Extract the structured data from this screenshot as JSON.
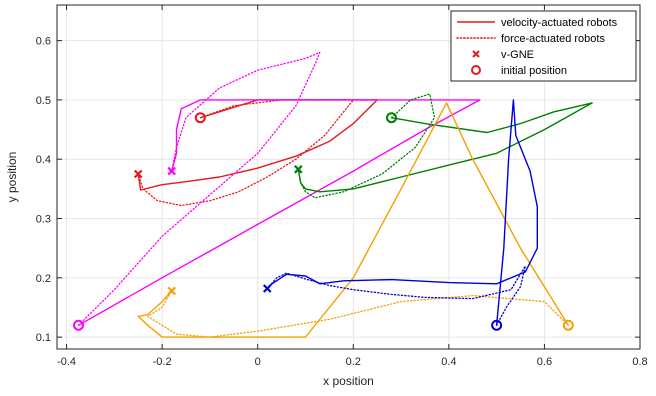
{
  "chart_data": {
    "type": "line",
    "xlabel": "x position",
    "ylabel": "y position",
    "xlim": [
      -0.42,
      0.8
    ],
    "ylim": [
      0.08,
      0.66
    ],
    "x_ticks": [
      -0.4,
      -0.2,
      0,
      0.2,
      0.4,
      0.6,
      0.8
    ],
    "y_ticks": [
      0.1,
      0.2,
      0.3,
      0.4,
      0.5,
      0.6
    ],
    "x_tick_labels": [
      "-0.4",
      "-0.2",
      "0",
      "0.2",
      "0.4",
      "0.6",
      "0.8"
    ],
    "y_tick_labels": [
      "0.1",
      "0.2",
      "0.3",
      "0.4",
      "0.5",
      "0.6"
    ],
    "grid": true,
    "legend_placement": "top-right",
    "legend": [
      {
        "label": "velocity-actuated robots",
        "style": "solid-line",
        "color": "#e41a1c"
      },
      {
        "label": "force-actuated robots",
        "style": "dotted-line",
        "color": "#e41a1c"
      },
      {
        "label": "v-GNE",
        "style": "x-marker",
        "color": "#e41a1c"
      },
      {
        "label": "initial position",
        "style": "circle-marker",
        "color": "#e41a1c"
      }
    ],
    "series": [
      {
        "color": "#e41a1c",
        "initial": [
          -0.12,
          0.47
        ],
        "gne": [
          -0.25,
          0.375
        ],
        "velocity": [
          [
            -0.12,
            0.47
          ],
          [
            0.0,
            0.5
          ],
          [
            0.25,
            0.5
          ],
          [
            0.2,
            0.46
          ],
          [
            0.15,
            0.43
          ],
          [
            0.08,
            0.405
          ],
          [
            0.0,
            0.385
          ],
          [
            -0.08,
            0.37
          ],
          [
            -0.15,
            0.362
          ],
          [
            -0.2,
            0.357
          ],
          [
            -0.245,
            0.348
          ],
          [
            -0.25,
            0.375
          ]
        ],
        "force": [
          [
            -0.12,
            0.47
          ],
          [
            -0.05,
            0.49
          ],
          [
            0.05,
            0.5
          ],
          [
            0.2,
            0.5
          ],
          [
            0.14,
            0.44
          ],
          [
            0.08,
            0.4
          ],
          [
            0.02,
            0.37
          ],
          [
            -0.04,
            0.345
          ],
          [
            -0.1,
            0.33
          ],
          [
            -0.16,
            0.322
          ],
          [
            -0.21,
            0.33
          ],
          [
            -0.24,
            0.35
          ],
          [
            -0.25,
            0.375
          ]
        ]
      },
      {
        "color": "#ff00ff",
        "initial": [
          -0.375,
          0.12
        ],
        "gne": [
          -0.18,
          0.38
        ],
        "velocity": [
          [
            -0.375,
            0.12
          ],
          [
            -0.2,
            0.2
          ],
          [
            0.0,
            0.29
          ],
          [
            0.2,
            0.38
          ],
          [
            0.35,
            0.45
          ],
          [
            0.465,
            0.5
          ],
          [
            0.3,
            0.5
          ],
          [
            0.1,
            0.5
          ],
          [
            -0.12,
            0.5
          ],
          [
            -0.16,
            0.485
          ],
          [
            -0.17,
            0.45
          ],
          [
            -0.17,
            0.41
          ],
          [
            -0.18,
            0.38
          ]
        ],
        "force": [
          [
            -0.375,
            0.12
          ],
          [
            -0.3,
            0.18
          ],
          [
            -0.2,
            0.27
          ],
          [
            -0.1,
            0.34
          ],
          [
            0.0,
            0.41
          ],
          [
            0.08,
            0.49
          ],
          [
            0.12,
            0.56
          ],
          [
            0.13,
            0.58
          ],
          [
            0.1,
            0.57
          ],
          [
            0.0,
            0.55
          ],
          [
            -0.08,
            0.52
          ],
          [
            -0.15,
            0.47
          ],
          [
            -0.17,
            0.42
          ],
          [
            -0.18,
            0.38
          ]
        ]
      },
      {
        "color": "#008000",
        "initial": [
          0.28,
          0.47
        ],
        "gne": [
          0.085,
          0.383
        ],
        "velocity": [
          [
            0.28,
            0.47
          ],
          [
            0.35,
            0.46
          ],
          [
            0.48,
            0.445
          ],
          [
            0.55,
            0.46
          ],
          [
            0.62,
            0.48
          ],
          [
            0.7,
            0.495
          ],
          [
            0.6,
            0.45
          ],
          [
            0.5,
            0.41
          ],
          [
            0.4,
            0.39
          ],
          [
            0.3,
            0.37
          ],
          [
            0.2,
            0.35
          ],
          [
            0.13,
            0.345
          ],
          [
            0.1,
            0.35
          ],
          [
            0.09,
            0.36
          ],
          [
            0.085,
            0.383
          ]
        ],
        "force": [
          [
            0.28,
            0.47
          ],
          [
            0.32,
            0.5
          ],
          [
            0.36,
            0.51
          ],
          [
            0.37,
            0.47
          ],
          [
            0.33,
            0.42
          ],
          [
            0.26,
            0.375
          ],
          [
            0.18,
            0.345
          ],
          [
            0.12,
            0.335
          ],
          [
            0.1,
            0.345
          ],
          [
            0.09,
            0.36
          ],
          [
            0.085,
            0.383
          ]
        ]
      },
      {
        "color": "#f5a000",
        "initial": [
          0.65,
          0.12
        ],
        "gne": [
          -0.18,
          0.178
        ],
        "velocity": [
          [
            0.65,
            0.12
          ],
          [
            0.55,
            0.25
          ],
          [
            0.45,
            0.4
          ],
          [
            0.395,
            0.495
          ],
          [
            0.3,
            0.35
          ],
          [
            0.2,
            0.2
          ],
          [
            0.1,
            0.1
          ],
          [
            0.0,
            0.1
          ],
          [
            -0.12,
            0.1
          ],
          [
            -0.2,
            0.1
          ],
          [
            -0.23,
            0.12
          ],
          [
            -0.25,
            0.135
          ],
          [
            -0.23,
            0.138
          ],
          [
            -0.2,
            0.16
          ],
          [
            -0.18,
            0.178
          ]
        ],
        "force": [
          [
            0.65,
            0.12
          ],
          [
            0.6,
            0.16
          ],
          [
            0.45,
            0.17
          ],
          [
            0.3,
            0.16
          ],
          [
            0.15,
            0.13
          ],
          [
            0.0,
            0.11
          ],
          [
            -0.1,
            0.1
          ],
          [
            -0.17,
            0.105
          ],
          [
            -0.2,
            0.12
          ],
          [
            -0.23,
            0.135
          ],
          [
            -0.2,
            0.15
          ],
          [
            -0.19,
            0.165
          ],
          [
            -0.18,
            0.178
          ]
        ]
      },
      {
        "color": "#0000dd",
        "initial": [
          0.5,
          0.12
        ],
        "gne": [
          0.02,
          0.182
        ],
        "velocity": [
          [
            0.5,
            0.12
          ],
          [
            0.515,
            0.25
          ],
          [
            0.525,
            0.4
          ],
          [
            0.535,
            0.5
          ],
          [
            0.54,
            0.44
          ],
          [
            0.57,
            0.38
          ],
          [
            0.585,
            0.32
          ],
          [
            0.585,
            0.25
          ],
          [
            0.56,
            0.21
          ],
          [
            0.5,
            0.19
          ],
          [
            0.4,
            0.192
          ],
          [
            0.28,
            0.197
          ],
          [
            0.18,
            0.195
          ],
          [
            0.13,
            0.19
          ],
          [
            0.1,
            0.203
          ],
          [
            0.06,
            0.206
          ],
          [
            0.03,
            0.19
          ],
          [
            0.02,
            0.182
          ]
        ],
        "force": [
          [
            0.5,
            0.12
          ],
          [
            0.52,
            0.15
          ],
          [
            0.55,
            0.185
          ],
          [
            0.56,
            0.22
          ],
          [
            0.53,
            0.18
          ],
          [
            0.45,
            0.165
          ],
          [
            0.35,
            0.167
          ],
          [
            0.28,
            0.172
          ],
          [
            0.2,
            0.18
          ],
          [
            0.15,
            0.187
          ],
          [
            0.1,
            0.198
          ],
          [
            0.06,
            0.208
          ],
          [
            0.04,
            0.2
          ],
          [
            0.02,
            0.182
          ]
        ]
      }
    ]
  }
}
